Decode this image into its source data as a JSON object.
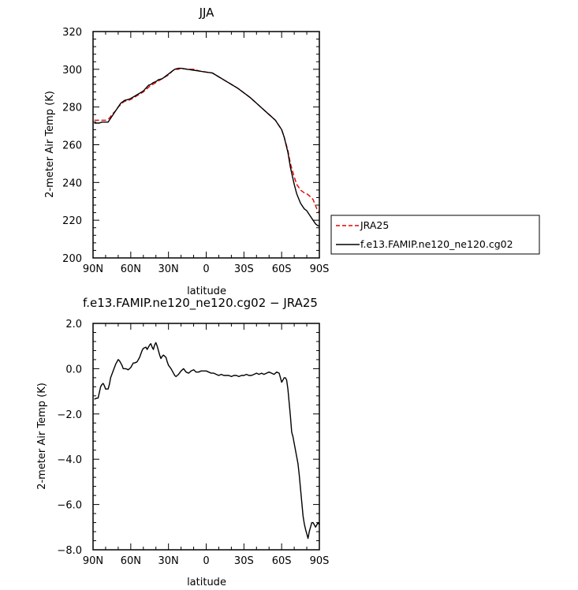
{
  "chart_data": [
    {
      "type": "line",
      "title": "JJA",
      "xlabel": "latitude",
      "ylabel": "2-meter Air Temp (K)",
      "xlim": [
        90,
        -90
      ],
      "ylim": [
        200,
        320
      ],
      "x_ticks": [
        90,
        60,
        30,
        0,
        -30,
        -60,
        -90
      ],
      "x_tick_labels": [
        "90N",
        "60N",
        "30N",
        "0",
        "30S",
        "60S",
        "90S"
      ],
      "y_ticks": [
        200,
        220,
        240,
        260,
        280,
        300,
        320
      ],
      "y_tick_labels": [
        "200",
        "220",
        "240",
        "260",
        "280",
        "300",
        "320"
      ],
      "grid": false,
      "legend_position": "right",
      "series": [
        {
          "name": "JRA25",
          "color": "#e00000",
          "dash": "dashed",
          "x": [
            89,
            85,
            80,
            77,
            75,
            72,
            70,
            67,
            65,
            62,
            60,
            55,
            50,
            45,
            40,
            35,
            30,
            27,
            25,
            22,
            20,
            15,
            10,
            5,
            0,
            -5,
            -10,
            -15,
            -20,
            -25,
            -30,
            -35,
            -40,
            -45,
            -50,
            -55,
            -60,
            -62,
            -65,
            -67,
            -70,
            -72,
            -75,
            -78,
            -80,
            -82,
            -85,
            -88,
            -90
          ],
          "y": [
            273,
            273,
            273,
            274,
            276,
            278,
            280,
            282,
            283,
            283.5,
            284,
            286,
            288,
            291,
            293,
            295,
            297,
            299,
            300,
            300,
            300.5,
            300,
            300,
            299,
            298.5,
            298,
            296,
            294,
            292,
            290,
            287.5,
            285,
            282,
            279,
            276,
            273,
            268,
            264,
            257,
            250,
            243,
            239,
            236,
            234.5,
            234,
            233,
            231,
            226,
            224
          ]
        },
        {
          "name": "f.e13.FAMIP.ne120_ne120.cg02",
          "color": "#000000",
          "dash": "solid",
          "x": [
            89,
            85,
            83,
            81,
            80,
            78,
            77,
            75,
            72,
            70,
            68,
            65,
            62,
            60,
            55,
            50,
            48,
            46,
            44,
            42,
            40,
            38,
            35,
            33,
            30,
            27,
            25,
            22,
            20,
            15,
            10,
            5,
            0,
            -5,
            -10,
            -15,
            -20,
            -25,
            -30,
            -35,
            -40,
            -45,
            -50,
            -55,
            -60,
            -62,
            -65,
            -67,
            -70,
            -72,
            -75,
            -78,
            -80,
            -82,
            -85,
            -87,
            -89,
            -90
          ],
          "y": [
            271.5,
            271.5,
            272,
            272,
            272,
            272,
            273,
            275,
            278,
            280,
            282,
            283.5,
            284,
            284.5,
            286.5,
            288.5,
            290,
            291.5,
            292,
            293,
            293.5,
            294.5,
            295,
            296,
            297.5,
            299,
            300,
            300.5,
            300.5,
            300,
            299.5,
            299,
            298.5,
            298,
            296,
            294,
            292,
            290,
            287.5,
            285,
            282,
            279,
            276,
            273,
            268,
            264,
            256,
            248,
            239,
            234,
            229,
            226,
            225,
            223,
            220,
            218,
            217,
            217
          ]
        }
      ]
    },
    {
      "type": "line",
      "title": "f.e13.FAMIP.ne120_ne120.cg02 − JRA25",
      "xlabel": "latitude",
      "ylabel": "2-meter Air Temp (K)",
      "xlim": [
        90,
        -90
      ],
      "ylim": [
        -8,
        2
      ],
      "x_ticks": [
        90,
        60,
        30,
        0,
        -30,
        -60,
        -90
      ],
      "x_tick_labels": [
        "90N",
        "60N",
        "30N",
        "0",
        "30S",
        "60S",
        "90S"
      ],
      "y_ticks": [
        -8,
        -6,
        -4,
        -2,
        0,
        2
      ],
      "y_tick_labels": [
        "−8.0",
        "−6.0",
        "−4.0",
        "−2.0",
        "0.0",
        "2.0"
      ],
      "grid": false,
      "series": [
        {
          "color": "#000000",
          "dash": "solid",
          "x": [
            89,
            87,
            86,
            84,
            83,
            82,
            81,
            80,
            78,
            77,
            76,
            74,
            72,
            71,
            70,
            69,
            68,
            67,
            66,
            64,
            62,
            60,
            58,
            57,
            55,
            53,
            51,
            50,
            48,
            47,
            46,
            45,
            44,
            43,
            42,
            41,
            40,
            39,
            38,
            37,
            36,
            35,
            34,
            32,
            31,
            30,
            28,
            26,
            25,
            24,
            22,
            20,
            18,
            16,
            14,
            12,
            10,
            8,
            6,
            4,
            2,
            0,
            -2,
            -4,
            -6,
            -8,
            -10,
            -12,
            -14,
            -16,
            -18,
            -20,
            -22,
            -24,
            -26,
            -28,
            -30,
            -32,
            -34,
            -36,
            -38,
            -40,
            -42,
            -44,
            -46,
            -48,
            -50,
            -52,
            -54,
            -56,
            -58,
            -60,
            -61,
            -62,
            -63,
            -64,
            -65,
            -66,
            -67,
            -68,
            -69,
            -70,
            -71,
            -72,
            -73,
            -74,
            -75,
            -76,
            -77,
            -78,
            -79,
            -80,
            -81,
            -82,
            -83,
            -84,
            -85,
            -86,
            -87,
            -88,
            -89,
            -90
          ],
          "y": [
            -1.35,
            -1.3,
            -1.3,
            -0.8,
            -0.7,
            -0.65,
            -0.75,
            -0.9,
            -0.9,
            -0.7,
            -0.4,
            -0.1,
            0.2,
            0.3,
            0.4,
            0.35,
            0.25,
            0.15,
            0.0,
            0.0,
            -0.05,
            0.05,
            0.25,
            0.25,
            0.3,
            0.5,
            0.8,
            0.9,
            0.95,
            0.85,
            0.95,
            1.05,
            1.1,
            0.95,
            0.85,
            1.05,
            1.15,
            1.0,
            0.8,
            0.6,
            0.45,
            0.55,
            0.6,
            0.5,
            0.3,
            0.15,
            0.0,
            -0.2,
            -0.3,
            -0.35,
            -0.25,
            -0.1,
            0.0,
            -0.15,
            -0.2,
            -0.1,
            -0.05,
            -0.15,
            -0.15,
            -0.1,
            -0.1,
            -0.1,
            -0.15,
            -0.2,
            -0.2,
            -0.25,
            -0.3,
            -0.25,
            -0.3,
            -0.3,
            -0.3,
            -0.35,
            -0.3,
            -0.3,
            -0.35,
            -0.3,
            -0.3,
            -0.25,
            -0.3,
            -0.3,
            -0.25,
            -0.2,
            -0.25,
            -0.2,
            -0.25,
            -0.2,
            -0.15,
            -0.2,
            -0.25,
            -0.15,
            -0.2,
            -0.6,
            -0.5,
            -0.4,
            -0.4,
            -0.5,
            -0.9,
            -1.5,
            -2.1,
            -2.8,
            -3.0,
            -3.3,
            -3.6,
            -3.9,
            -4.2,
            -4.7,
            -5.3,
            -5.9,
            -6.5,
            -6.85,
            -7.1,
            -7.3,
            -7.5,
            -7.2,
            -7.0,
            -6.8,
            -6.8,
            -6.9,
            -7.0,
            -6.9,
            -6.8,
            -6.9
          ]
        }
      ]
    }
  ]
}
